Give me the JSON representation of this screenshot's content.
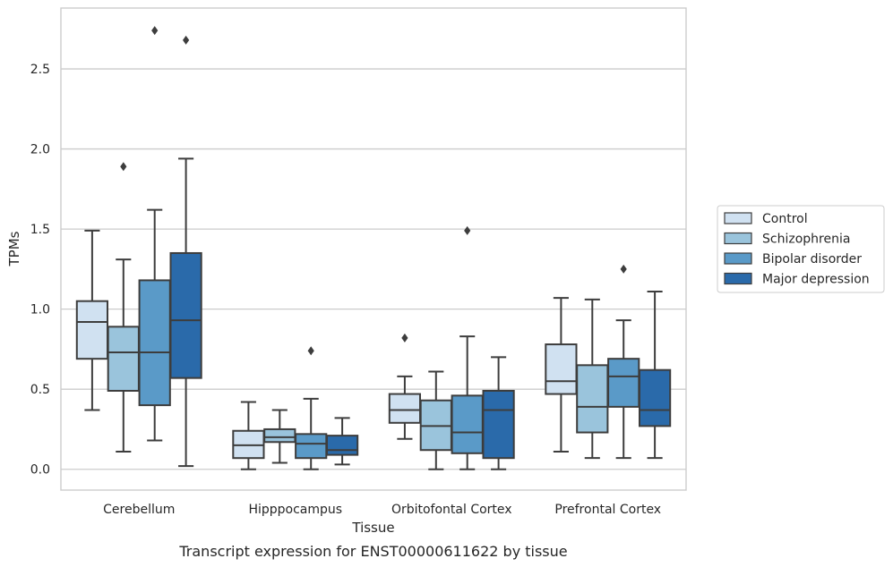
{
  "chart_data": {
    "type": "box",
    "title": "",
    "caption": "Transcript expression for ENST00000611622 by tissue",
    "xlabel": "Tissue",
    "ylabel": "TPMs",
    "ylim": [
      -0.13,
      2.88
    ],
    "yticks": [
      "0.0",
      "0.5",
      "1.0",
      "1.5",
      "2.0",
      "2.5"
    ],
    "grid": "horizontal",
    "legend_position": "right",
    "categories": [
      "Cerebellum",
      "Hipppocampus",
      "Orbitofontal Cortex",
      "Prefrontal Cortex"
    ],
    "series": [
      {
        "name": "Control",
        "color": "#d0e1f1",
        "boxes": [
          {
            "whisker_low": 0.37,
            "q1": 0.69,
            "median": 0.92,
            "q3": 1.05,
            "whisker_high": 1.49,
            "outliers": []
          },
          {
            "whisker_low": 0.0,
            "q1": 0.07,
            "median": 0.15,
            "q3": 0.24,
            "whisker_high": 0.42,
            "outliers": []
          },
          {
            "whisker_low": 0.19,
            "q1": 0.29,
            "median": 0.37,
            "q3": 0.47,
            "whisker_high": 0.58,
            "outliers": [
              0.82
            ]
          },
          {
            "whisker_low": 0.11,
            "q1": 0.47,
            "median": 0.55,
            "q3": 0.78,
            "whisker_high": 1.07,
            "outliers": []
          }
        ]
      },
      {
        "name": "Schizophrenia",
        "color": "#9ac4dc",
        "boxes": [
          {
            "whisker_low": 0.11,
            "q1": 0.49,
            "median": 0.73,
            "q3": 0.89,
            "whisker_high": 1.31,
            "outliers": [
              1.89
            ]
          },
          {
            "whisker_low": 0.04,
            "q1": 0.17,
            "median": 0.2,
            "q3": 0.25,
            "whisker_high": 0.37,
            "outliers": []
          },
          {
            "whisker_low": 0.0,
            "q1": 0.12,
            "median": 0.27,
            "q3": 0.43,
            "whisker_high": 0.61,
            "outliers": []
          },
          {
            "whisker_low": 0.07,
            "q1": 0.23,
            "median": 0.39,
            "q3": 0.65,
            "whisker_high": 1.06,
            "outliers": []
          }
        ]
      },
      {
        "name": "Bipolar disorder",
        "color": "#5a9ac8",
        "boxes": [
          {
            "whisker_low": 0.18,
            "q1": 0.4,
            "median": 0.73,
            "q3": 1.18,
            "whisker_high": 1.62,
            "outliers": [
              2.74
            ]
          },
          {
            "whisker_low": 0.0,
            "q1": 0.07,
            "median": 0.16,
            "q3": 0.22,
            "whisker_high": 0.44,
            "outliers": [
              0.74
            ]
          },
          {
            "whisker_low": 0.0,
            "q1": 0.1,
            "median": 0.23,
            "q3": 0.46,
            "whisker_high": 0.83,
            "outliers": [
              1.49
            ]
          },
          {
            "whisker_low": 0.07,
            "q1": 0.39,
            "median": 0.58,
            "q3": 0.69,
            "whisker_high": 0.93,
            "outliers": [
              1.25
            ]
          }
        ]
      },
      {
        "name": "Major depression",
        "color": "#2a6aaa",
        "boxes": [
          {
            "whisker_low": 0.02,
            "q1": 0.57,
            "median": 0.93,
            "q3": 1.35,
            "whisker_high": 1.94,
            "outliers": [
              2.68
            ]
          },
          {
            "whisker_low": 0.03,
            "q1": 0.09,
            "median": 0.12,
            "q3": 0.21,
            "whisker_high": 0.32,
            "outliers": []
          },
          {
            "whisker_low": 0.0,
            "q1": 0.07,
            "median": 0.37,
            "q3": 0.49,
            "whisker_high": 0.7,
            "outliers": []
          },
          {
            "whisker_low": 0.07,
            "q1": 0.27,
            "median": 0.37,
            "q3": 0.62,
            "whisker_high": 1.11,
            "outliers": []
          }
        ]
      }
    ]
  }
}
